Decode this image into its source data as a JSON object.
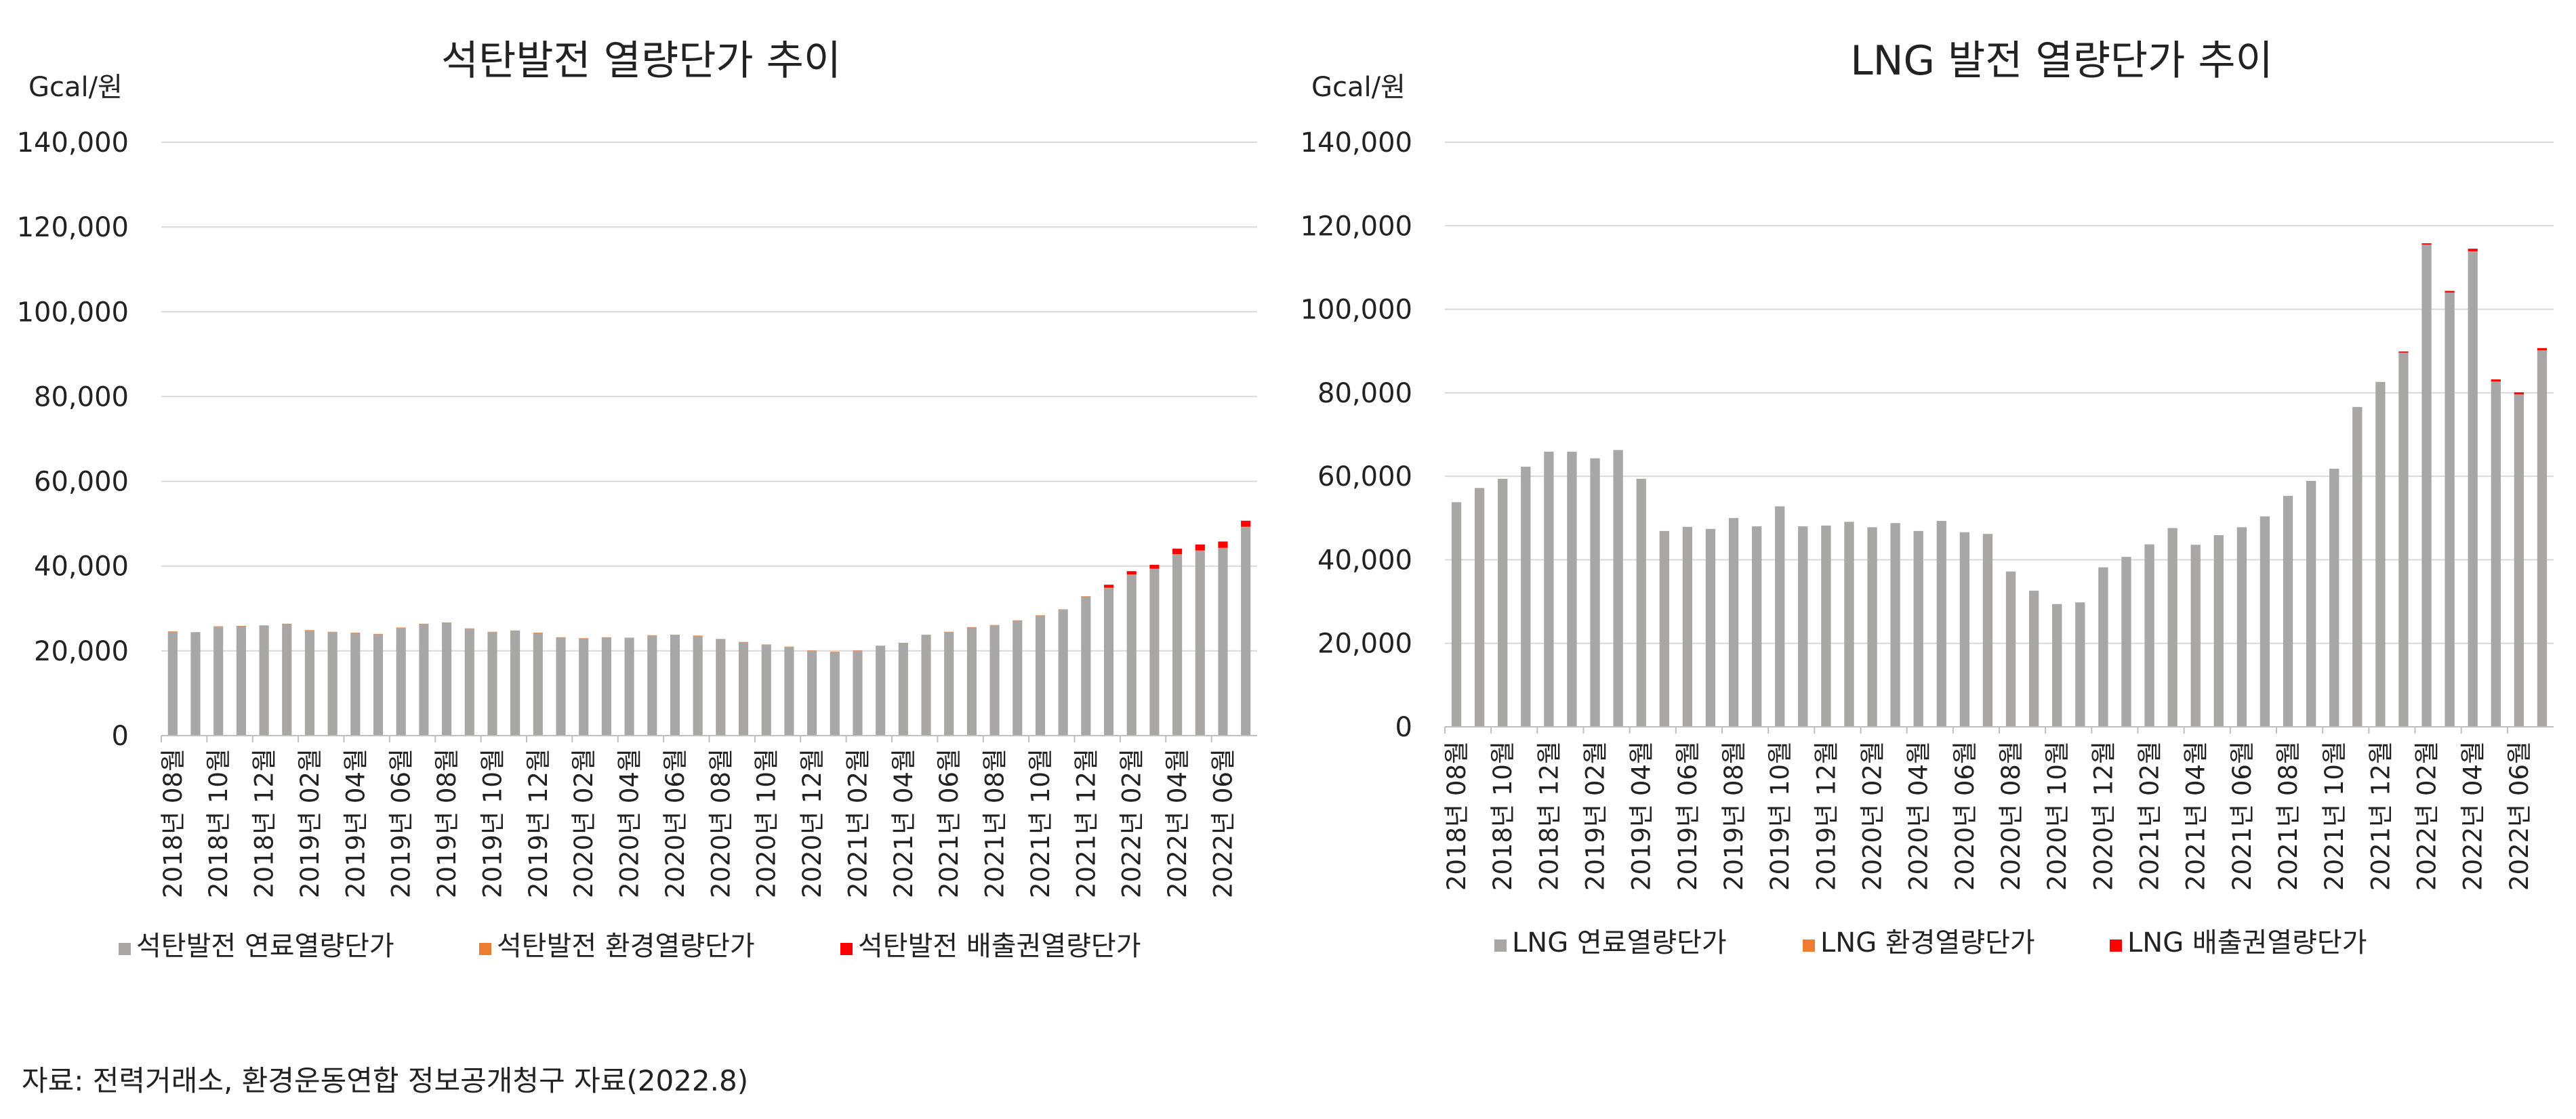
{
  "colors": {
    "fuel": "#a9a6a6",
    "env": "#ed7d31",
    "emission": "#ff0000",
    "grid": "#d9d9d9",
    "axis": "#bfbfbf",
    "text": "#222222"
  },
  "source": "자료: 전력거래소, 환경운동연합 정보공개청구 자료(2022.8)",
  "chart_data": [
    {
      "type": "bar",
      "stacked": true,
      "title": "석탄발전 열량단가 추이",
      "ylabel": "Gcal/원",
      "ylim": [
        0,
        140000
      ],
      "yticks": [
        "0",
        "20,000",
        "40,000",
        "60,000",
        "80,000",
        "100,000",
        "120,000",
        "140,000"
      ],
      "grid": true,
      "legend_position": "bottom-left",
      "categories": [
        "2018년 08월",
        "2018년 09월",
        "2018년 10월",
        "2018년 11월",
        "2018년 12월",
        "2019년 01월",
        "2019년 02월",
        "2019년 03월",
        "2019년 04월",
        "2019년 05월",
        "2019년 06월",
        "2019년 07월",
        "2019년 08월",
        "2019년 09월",
        "2019년 10월",
        "2019년 11월",
        "2019년 12월",
        "2020년 01월",
        "2020년 02월",
        "2020년 03월",
        "2020년 04월",
        "2020년 05월",
        "2020년 06월",
        "2020년 07월",
        "2020년 08월",
        "2020년 09월",
        "2020년 10월",
        "2020년 11월",
        "2020년 12월",
        "2021년 01월",
        "2021년 02월",
        "2021년 03월",
        "2021년 04월",
        "2021년 05월",
        "2021년 06월",
        "2021년 07월",
        "2021년 08월",
        "2021년 09월",
        "2021년 10월",
        "2021년 11월",
        "2021년 12월",
        "2022년 01월",
        "2022년 02월",
        "2022년 03월",
        "2022년 04월",
        "2022년 05월",
        "2022년 06월",
        "2022년 07월"
      ],
      "tick_labels": [
        "2018년 08월",
        "2018년 10월",
        "2018년 12월",
        "2019년 02월",
        "2019년 04월",
        "2019년 06월",
        "2019년 08월",
        "2019년 10월",
        "2019년 12월",
        "2020년 02월",
        "2020년 04월",
        "2020년 06월",
        "2020년 08월",
        "2020년 10월",
        "2020년 12월",
        "2021년 02월",
        "2021년 04월",
        "2021년 06월",
        "2021년 08월",
        "2021년 10월",
        "2021년 12월",
        "2022년 02월",
        "2022년 04월",
        "2022년 06월"
      ],
      "series": [
        {
          "name": "석탄발전 연료열량단가",
          "color_key": "fuel",
          "values": [
            24500,
            24300,
            25700,
            25800,
            25900,
            26300,
            24800,
            24400,
            24200,
            23900,
            25400,
            26300,
            26600,
            25200,
            24400,
            24700,
            24200,
            23100,
            22900,
            23100,
            23000,
            23600,
            23700,
            23500,
            22700,
            22000,
            21400,
            20900,
            20000,
            19700,
            20000,
            21100,
            21800,
            23700,
            24400,
            25500,
            26000,
            27100,
            28300,
            29700,
            32800,
            34800,
            37900,
            39300,
            42700,
            43600,
            44200,
            49200
          ]
        },
        {
          "name": "석탄발전 환경열량단가",
          "color_key": "env",
          "values": [
            100,
            100,
            100,
            100,
            100,
            100,
            100,
            100,
            100,
            100,
            100,
            100,
            100,
            100,
            100,
            100,
            100,
            100,
            100,
            100,
            100,
            100,
            100,
            100,
            100,
            100,
            100,
            100,
            100,
            100,
            100,
            100,
            100,
            100,
            100,
            100,
            100,
            100,
            100,
            100,
            100,
            100,
            100,
            100,
            100,
            100,
            100,
            100
          ]
        },
        {
          "name": "석탄발전 배출권열량단가",
          "color_key": "emission",
          "values": [
            0,
            0,
            0,
            0,
            0,
            0,
            0,
            0,
            0,
            0,
            0,
            0,
            0,
            0,
            0,
            0,
            0,
            0,
            0,
            0,
            0,
            0,
            0,
            0,
            0,
            0,
            0,
            0,
            0,
            0,
            0,
            0,
            0,
            0,
            0,
            0,
            0,
            0,
            0,
            0,
            0,
            700,
            800,
            900,
            1300,
            1400,
            1500,
            1400
          ]
        }
      ]
    },
    {
      "type": "bar",
      "stacked": true,
      "title": "LNG 발전 열량단가 추이",
      "ylabel": "Gcal/원",
      "ylim": [
        0,
        140000
      ],
      "yticks": [
        "0",
        "20,000",
        "40,000",
        "60,000",
        "80,000",
        "100,000",
        "120,000",
        "140,000"
      ],
      "grid": true,
      "legend_position": "bottom-left",
      "categories": [
        "2018년 08월",
        "2018년 09월",
        "2018년 10월",
        "2018년 11월",
        "2018년 12월",
        "2019년 01월",
        "2019년 02월",
        "2019년 03월",
        "2019년 04월",
        "2019년 05월",
        "2019년 06월",
        "2019년 07월",
        "2019년 08월",
        "2019년 09월",
        "2019년 10월",
        "2019년 11월",
        "2019년 12월",
        "2020년 01월",
        "2020년 02월",
        "2020년 03월",
        "2020년 04월",
        "2020년 05월",
        "2020년 06월",
        "2020년 07월",
        "2020년 08월",
        "2020년 09월",
        "2020년 10월",
        "2020년 11월",
        "2020년 12월",
        "2021년 01월",
        "2021년 02월",
        "2021년 03월",
        "2021년 04월",
        "2021년 05월",
        "2021년 06월",
        "2021년 07월",
        "2021년 08월",
        "2021년 09월",
        "2021년 10월",
        "2021년 11월",
        "2021년 12월",
        "2022년 01월",
        "2022년 02월",
        "2022년 03월",
        "2022년 04월",
        "2022년 05월",
        "2022년 06월",
        "2022년 07월"
      ],
      "tick_labels": [
        "2018년 08월",
        "2018년 10월",
        "2018년 12월",
        "2019년 02월",
        "2019년 04월",
        "2019년 06월",
        "2019년 08월",
        "2019년 10월",
        "2019년 12월",
        "2020년 02월",
        "2020년 04월",
        "2020년 06월",
        "2020년 08월",
        "2020년 10월",
        "2020년 12월",
        "2021년 02월",
        "2021년 04월",
        "2021년 06월",
        "2021년 08월",
        "2021년 10월",
        "2021년 12월",
        "2022년 02월",
        "2022년 04월",
        "2022년 06월"
      ],
      "series": [
        {
          "name": "LNG 연료열량단가",
          "color_key": "fuel",
          "values": [
            53800,
            57200,
            59400,
            62300,
            65900,
            65900,
            64300,
            66300,
            59400,
            46900,
            47900,
            47400,
            50000,
            48000,
            52800,
            48000,
            48200,
            49100,
            47800,
            48800,
            46900,
            49300,
            46600,
            46200,
            37200,
            32600,
            29400,
            29800,
            38200,
            40700,
            43700,
            47600,
            43600,
            45900,
            47800,
            50400,
            55300,
            58900,
            61800,
            76600,
            82600,
            89600,
            115500,
            104000,
            113900,
            82700,
            79600,
            90200
          ]
        },
        {
          "name": "LNG 환경열량단가",
          "color_key": "env",
          "values": [
            0,
            0,
            0,
            0,
            0,
            0,
            0,
            0,
            0,
            0,
            0,
            0,
            0,
            0,
            0,
            0,
            0,
            0,
            0,
            0,
            0,
            0,
            0,
            0,
            0,
            0,
            0,
            0,
            0,
            0,
            0,
            0,
            0,
            0,
            0,
            0,
            0,
            0,
            0,
            0,
            0,
            0,
            0,
            0,
            0,
            0,
            0,
            0
          ]
        },
        {
          "name": "LNG 배출권열량단가",
          "color_key": "emission",
          "values": [
            0,
            0,
            0,
            0,
            0,
            0,
            0,
            0,
            0,
            0,
            0,
            0,
            0,
            0,
            0,
            0,
            0,
            0,
            0,
            0,
            0,
            0,
            0,
            0,
            0,
            0,
            0,
            0,
            0,
            0,
            0,
            0,
            0,
            0,
            0,
            0,
            0,
            0,
            0,
            0,
            0,
            300,
            300,
            400,
            600,
            500,
            500,
            500
          ]
        }
      ]
    }
  ]
}
